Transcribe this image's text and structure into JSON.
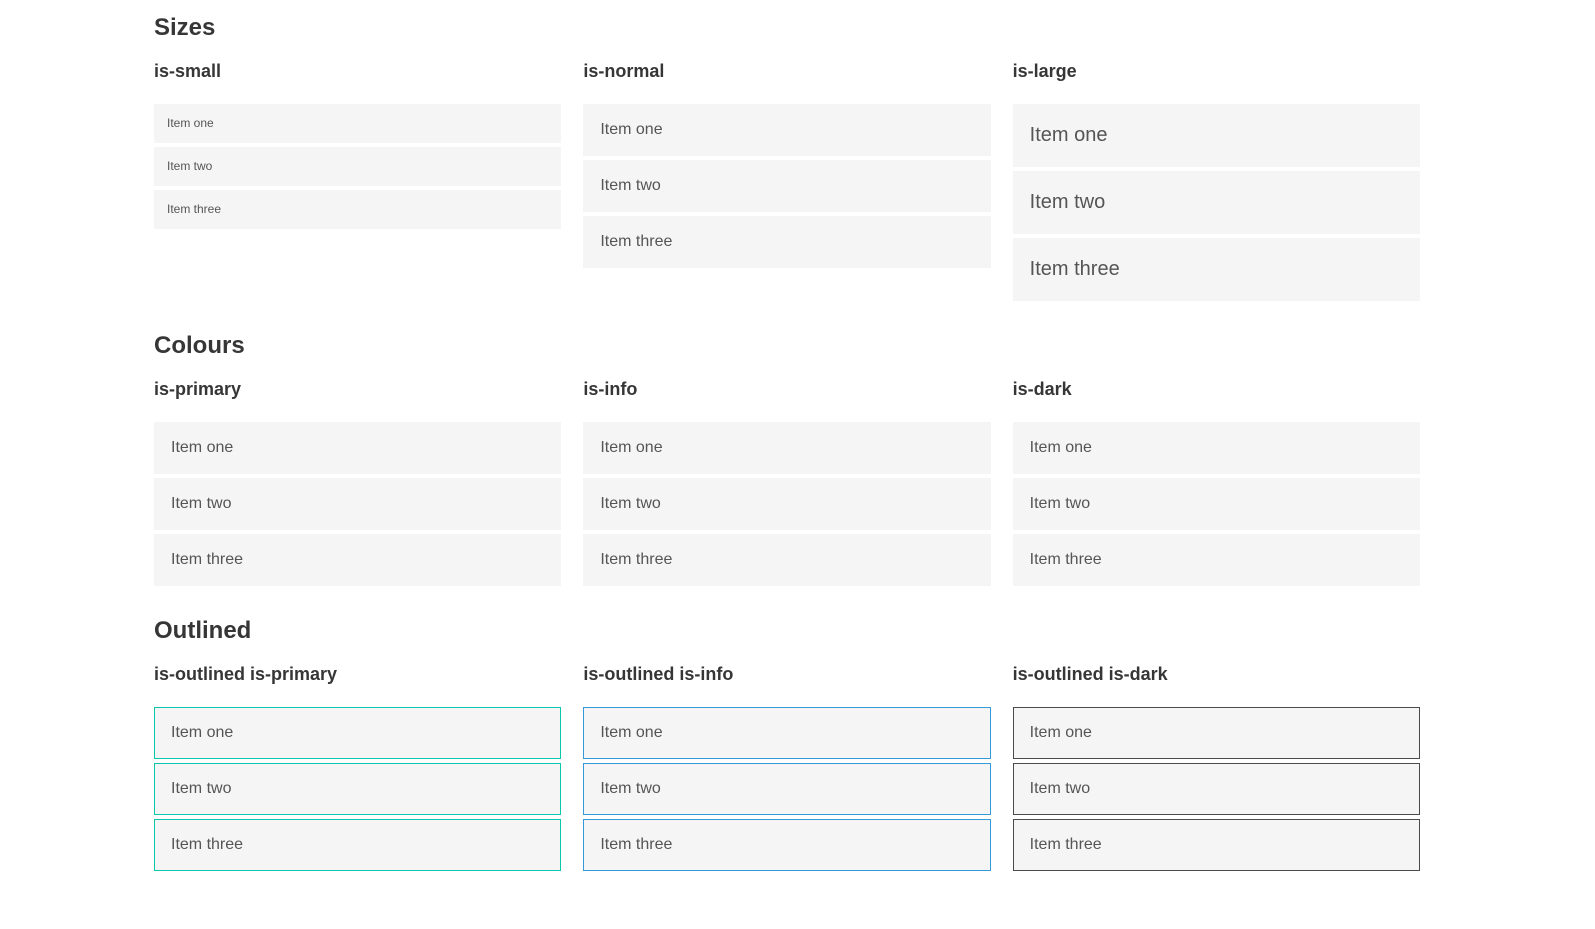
{
  "colors": {
    "primary": "#0bc8ad",
    "info": "#3498db",
    "dark": "#363636",
    "item_background": "#f5f5f5",
    "heading_text": "#363636",
    "item_text": "#555555",
    "page_background": "#ffffff"
  },
  "sections": [
    {
      "title": "Sizes",
      "groups": [
        {
          "variant": "is-small",
          "items": [
            "Item one",
            "Item two",
            "Item three"
          ]
        },
        {
          "variant": "is-normal",
          "items": [
            "Item one",
            "Item two",
            "Item three"
          ]
        },
        {
          "variant": "is-large",
          "items": [
            "Item one",
            "Item two",
            "Item three"
          ]
        }
      ]
    },
    {
      "title": "Colours",
      "groups": [
        {
          "variant": "is-primary",
          "items": [
            "Item one",
            "Item two",
            "Item three"
          ]
        },
        {
          "variant": "is-info",
          "items": [
            "Item one",
            "Item two",
            "Item three"
          ]
        },
        {
          "variant": "is-dark",
          "items": [
            "Item one",
            "Item two",
            "Item three"
          ]
        }
      ]
    },
    {
      "title": "Outlined",
      "groups": [
        {
          "variant": "is-outlined is-primary",
          "items": [
            "Item one",
            "Item two",
            "Item three"
          ]
        },
        {
          "variant": "is-outlined is-info",
          "items": [
            "Item one",
            "Item two",
            "Item three"
          ]
        },
        {
          "variant": "is-outlined is-dark",
          "items": [
            "Item one",
            "Item two",
            "Item three"
          ]
        }
      ]
    }
  ]
}
